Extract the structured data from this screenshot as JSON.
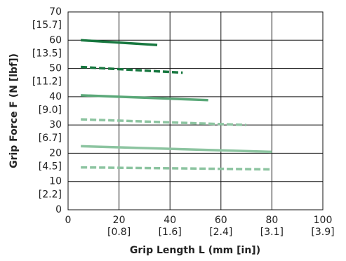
{
  "chart_data": {
    "type": "line",
    "xlabel": "Grip Length  L (mm [in])",
    "ylabel": "Grip Force  F (N [lbf])",
    "xlim": [
      0,
      100
    ],
    "ylim": [
      0,
      70
    ],
    "xticks": [
      0,
      20,
      40,
      60,
      80,
      100
    ],
    "yticks": [
      0,
      10,
      20,
      30,
      40,
      50,
      60,
      70
    ],
    "xticks_secondary": [
      {
        "value": 20,
        "label": "[0.8]"
      },
      {
        "value": 40,
        "label": "[1.6]"
      },
      {
        "value": 60,
        "label": "[2.4]"
      },
      {
        "value": 80,
        "label": "[3.1]"
      },
      {
        "value": 100,
        "label": "[3.9]"
      }
    ],
    "yticks_secondary": [
      {
        "value": 10,
        "label": "[2.2]"
      },
      {
        "value": 20,
        "label": "[4.5]"
      },
      {
        "value": 30,
        "label": "[6.7]"
      },
      {
        "value": 40,
        "label": "[9.0]"
      },
      {
        "value": 50,
        "label": "[11.2]"
      },
      {
        "value": 60,
        "label": "[13.5]"
      },
      {
        "value": 70,
        "label": "[15.7]"
      }
    ],
    "grid": true,
    "series": [
      {
        "color": "#17773f",
        "dashed": false,
        "x": [
          5,
          35
        ],
        "values": [
          60,
          58.3
        ]
      },
      {
        "color": "#17773f",
        "dashed": true,
        "x": [
          5,
          45
        ],
        "values": [
          50.5,
          48.5
        ]
      },
      {
        "color": "#5aa878",
        "dashed": false,
        "x": [
          5,
          55
        ],
        "values": [
          40.5,
          38.8
        ]
      },
      {
        "color": "#8cc4a0",
        "dashed": true,
        "x": [
          5,
          70
        ],
        "values": [
          32,
          30
        ]
      },
      {
        "color": "#8cc4a0",
        "dashed": false,
        "x": [
          5,
          80
        ],
        "values": [
          22.5,
          20.5
        ]
      },
      {
        "color": "#8cc4a0",
        "dashed": true,
        "x": [
          5,
          80
        ],
        "values": [
          15,
          14.3
        ]
      }
    ]
  }
}
